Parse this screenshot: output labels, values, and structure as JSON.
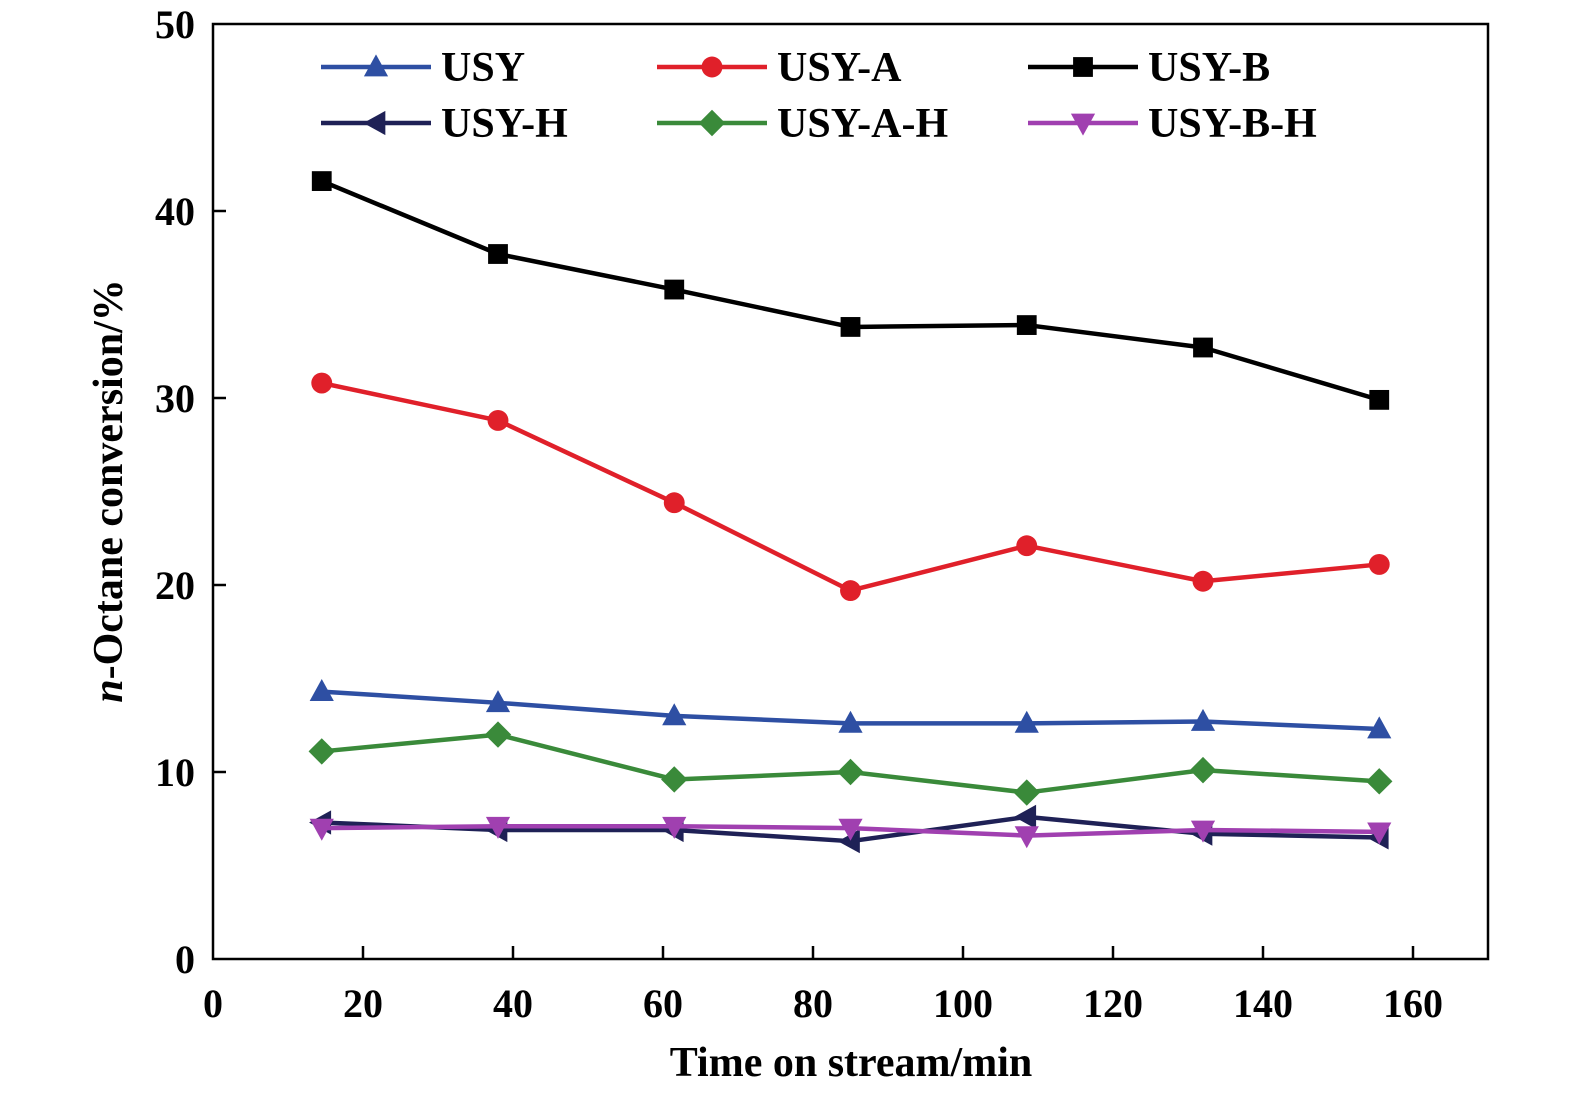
{
  "chart_data": {
    "type": "line",
    "xlabel": "Time on stream/min",
    "ylabel_prefix": "n",
    "ylabel_rest": "-Octane conversion/%",
    "xlim": [
      0,
      170
    ],
    "ylim": [
      0,
      50
    ],
    "xticks": [
      "0",
      "20",
      "40",
      "60",
      "80",
      "100",
      "120",
      "140",
      "160"
    ],
    "yticks": [
      "0",
      "10",
      "20",
      "30",
      "40",
      "50"
    ],
    "grid": false,
    "legend_position": "top",
    "x": [
      14.5,
      38,
      61.5,
      85,
      108.5,
      132,
      155.5
    ],
    "series": [
      {
        "name": "USY",
        "marker": "triangle-up",
        "color": "#2e4fa3",
        "values": [
          14.3,
          13.7,
          13.0,
          12.6,
          12.6,
          12.7,
          12.3
        ]
      },
      {
        "name": "USY-A",
        "marker": "circle",
        "color": "#e0202a",
        "values": [
          30.8,
          28.8,
          24.4,
          19.7,
          22.1,
          20.2,
          21.1
        ]
      },
      {
        "name": "USY-B",
        "marker": "square",
        "color": "#000000",
        "values": [
          41.6,
          37.7,
          35.8,
          33.8,
          33.9,
          32.7,
          29.9
        ]
      },
      {
        "name": "USY-H",
        "marker": "triangle-left",
        "color": "#1f2156",
        "values": [
          7.3,
          6.9,
          6.9,
          6.3,
          7.6,
          6.7,
          6.5
        ]
      },
      {
        "name": "USY-A-H",
        "marker": "diamond",
        "color": "#3a8a3a",
        "values": [
          11.1,
          12.0,
          9.6,
          10.0,
          8.9,
          10.1,
          9.5
        ]
      },
      {
        "name": "USY-B-H",
        "marker": "triangle-down",
        "color": "#a040b0",
        "values": [
          7.0,
          7.1,
          7.1,
          7.0,
          6.6,
          6.9,
          6.8
        ]
      }
    ]
  }
}
